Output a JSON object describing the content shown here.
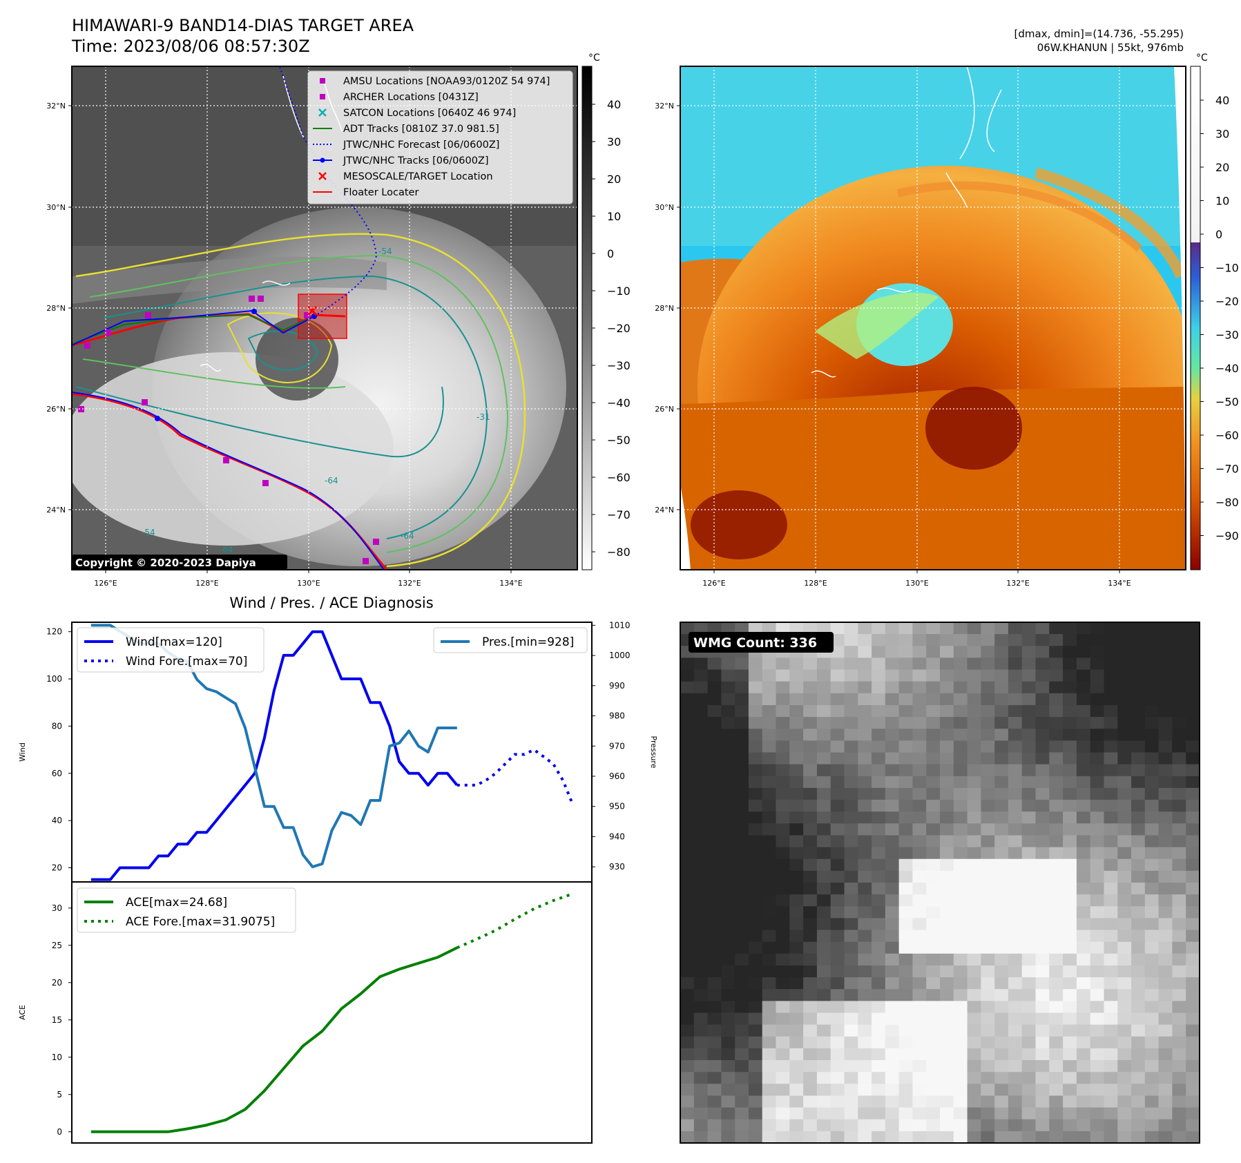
{
  "header": {
    "title": "HIMAWARI-9 BAND14-DIAS TARGET AREA",
    "time": "Time: 2023/08/06 08:57:30Z",
    "dmax_dmin": "[dmax, dmin]=(14.736, -55.295)",
    "storm": "06W.KHANUN | 55kt, 976mb"
  },
  "map": {
    "lat_ticks": [
      "32°N",
      "30°N",
      "28°N",
      "26°N",
      "24°N"
    ],
    "lon_ticks": [
      "126°E",
      "128°E",
      "130°E",
      "132°E",
      "134°E"
    ],
    "copyright": "Copyright © 2020-2023 Dapiya",
    "legend": [
      {
        "label": "AMSU Locations [NOAA93/0120Z 54 974]",
        "marker": "square",
        "color": "#c000c0"
      },
      {
        "label": "ARCHER Locations [0431Z]",
        "marker": "square",
        "color": "#c000c0"
      },
      {
        "label": "SATCON Locations [0640Z 46 974]",
        "marker": "x",
        "color": "#00b0b0"
      },
      {
        "label": "ADT Tracks [0810Z 37.0 981.5]",
        "marker": "line",
        "color": "#008000"
      },
      {
        "label": "JTWC/NHC Forecast [06/0600Z]",
        "marker": "dotted",
        "color": "#0000ff"
      },
      {
        "label": "JTWC/NHC Tracks [06/0600Z]",
        "marker": "line-dot",
        "color": "#0000ff"
      },
      {
        "label": "MESOSCALE/TARGET Location",
        "marker": "x",
        "color": "#ff0000"
      },
      {
        "label": "Floater Locater",
        "marker": "line",
        "color": "#ff0000"
      }
    ],
    "contour_labels": [
      "-54",
      "-64",
      "-31",
      "-64",
      "-54",
      "-64"
    ]
  },
  "colorbar_gray": {
    "unit": "°C",
    "ticks": [
      "40",
      "30",
      "20",
      "10",
      "0",
      "−10",
      "−20",
      "−30",
      "−40",
      "−50",
      "−60",
      "−70",
      "−80"
    ]
  },
  "colorbar_color": {
    "unit": "°C",
    "ticks": [
      "40",
      "30",
      "20",
      "10",
      "0",
      "−10",
      "−20",
      "−30",
      "−40",
      "−50",
      "−60",
      "−70",
      "−80",
      "−90"
    ]
  },
  "wmg": {
    "label": "WMG Count: 336"
  },
  "chart_data": [
    {
      "type": "line",
      "title": "Wind / Pres. / ACE Diagnosis",
      "ylabel": "Wind",
      "y2label": "Pressure",
      "ylim": [
        14,
        124
      ],
      "y2lim": [
        925,
        1011
      ],
      "yticks": [
        "20",
        "40",
        "60",
        "80",
        "100",
        "120"
      ],
      "y2ticks": [
        "930",
        "940",
        "950",
        "960",
        "970",
        "980",
        "990",
        "1000",
        "1010"
      ],
      "series": [
        {
          "name": "Wind[max=120]",
          "color": "#0000ee",
          "style": "solid",
          "axis": "left",
          "x": [
            0,
            1,
            2,
            3,
            4,
            5,
            6,
            7,
            8,
            9,
            10,
            11,
            12,
            13,
            14,
            15,
            16,
            17,
            18,
            19,
            20,
            21,
            22,
            23,
            24,
            25,
            26,
            27,
            28,
            29,
            30,
            31,
            32,
            33,
            34,
            35,
            36,
            37,
            38
          ],
          "values": [
            15,
            15,
            15,
            20,
            20,
            20,
            20,
            25,
            25,
            30,
            30,
            35,
            35,
            40,
            45,
            50,
            55,
            60,
            75,
            95,
            110,
            110,
            115,
            120,
            120,
            110,
            100,
            100,
            100,
            90,
            90,
            80,
            65,
            60,
            60,
            55,
            60,
            60,
            55
          ]
        },
        {
          "name": "Wind Fore.[max=70]",
          "color": "#0000ee",
          "style": "dotted",
          "axis": "left",
          "x": [
            38,
            39,
            40,
            41,
            42,
            43,
            44,
            45,
            46,
            47,
            48,
            49,
            50
          ],
          "values": [
            55,
            55,
            55,
            57,
            60,
            64,
            68,
            68,
            70,
            67,
            64,
            57,
            47
          ]
        },
        {
          "name": "Pres.[min=928]",
          "color": "#1f77b4",
          "style": "solid",
          "axis": "right",
          "x": [
            0,
            1,
            2,
            3,
            4,
            5,
            6,
            7,
            8,
            9,
            10,
            11,
            12,
            13,
            14,
            15,
            16,
            17,
            18,
            19,
            20,
            21,
            22,
            23,
            24,
            25,
            26,
            27,
            28,
            29,
            30,
            31,
            32,
            33,
            34,
            35,
            36,
            37,
            38
          ],
          "values": [
            1010,
            1010,
            1010,
            1008,
            1006,
            1004,
            1004,
            1004,
            1001,
            999,
            998,
            992,
            989,
            988,
            986,
            984,
            976,
            963,
            950,
            950,
            943,
            943,
            934,
            930,
            931,
            942,
            948,
            947,
            944,
            952,
            952,
            970,
            971,
            975,
            970,
            968,
            976,
            976,
            976
          ]
        }
      ]
    },
    {
      "type": "line",
      "ylabel": "ACE",
      "ylim": [
        -1.5,
        33.5
      ],
      "yticks": [
        "0",
        "5",
        "10",
        "15",
        "20",
        "25",
        "30"
      ],
      "series": [
        {
          "name": "ACE[max=24.68]",
          "color": "#008000",
          "style": "solid",
          "x": [
            0,
            2,
            4,
            6,
            8,
            10,
            12,
            14,
            16,
            18,
            20,
            22,
            24,
            26,
            28,
            30,
            32,
            34,
            36,
            38
          ],
          "values": [
            0,
            0,
            0,
            0,
            0,
            0.4,
            0.9,
            1.6,
            3.0,
            5.5,
            8.5,
            11.5,
            13.5,
            16.5,
            18.5,
            20.8,
            21.8,
            22.6,
            23.4,
            24.68
          ]
        },
        {
          "name": "ACE Fore.[max=31.9075]",
          "color": "#008000",
          "style": "dotted",
          "x": [
            38,
            40,
            42,
            44,
            46,
            48,
            50
          ],
          "values": [
            24.68,
            25.8,
            27,
            28.5,
            29.9,
            31.0,
            31.9
          ]
        }
      ]
    }
  ]
}
